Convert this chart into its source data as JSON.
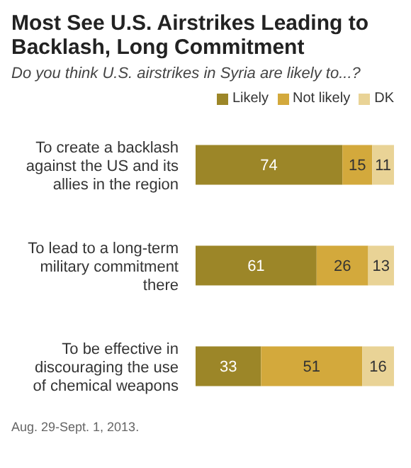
{
  "chart_data": {
    "type": "bar",
    "orientation": "horizontal",
    "stacked": true,
    "title": "Most See U.S. Airstrikes Leading to Backlash, Long Commitment",
    "subtitle": "Do you think U.S. airstrikes in Syria are likely to...?",
    "categories": [
      "To create a backlash against the US and its allies in the region",
      "To lead to a long-term military commitment there",
      "To be effective in discouraging the use of chemical weapons"
    ],
    "series": [
      {
        "name": "Likely",
        "color": "#9c8628",
        "values": [
          74,
          61,
          33
        ]
      },
      {
        "name": "Not likely",
        "color": "#d3a93c",
        "values": [
          15,
          26,
          51
        ]
      },
      {
        "name": "DK",
        "color": "#e9d396",
        "values": [
          11,
          13,
          16
        ]
      }
    ],
    "data_labels": true,
    "legend": "top right",
    "grid": false,
    "annotations": [
      "Aug. 29-Sept. 1, 2013."
    ]
  }
}
